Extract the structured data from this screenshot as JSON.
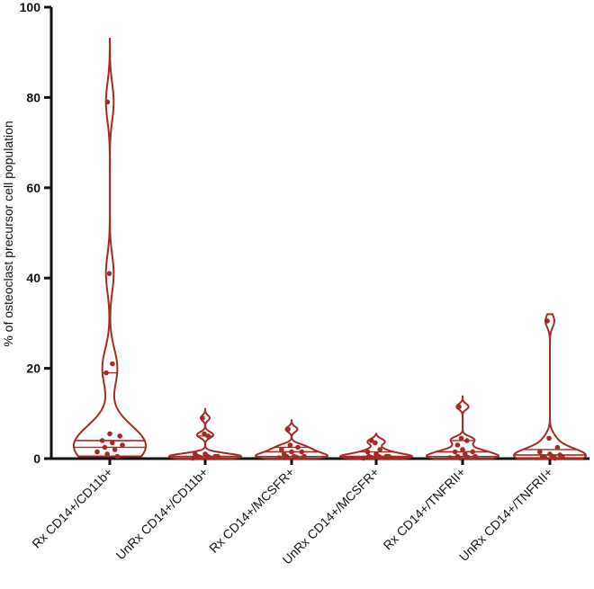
{
  "colors": {
    "accent": "#a52a22",
    "axis": "#111111"
  },
  "chart_data": {
    "type": "violin",
    "ylabel": "% of osteoclast precursor cell population",
    "xlabel": "",
    "ylim": [
      0,
      100
    ],
    "yticks": [
      0,
      20,
      40,
      60,
      80,
      100
    ],
    "categories": [
      "Rx CD14+/CD11b+",
      "UnRx CD14+/CD11b+",
      "Rx CD14+/MCSFR+",
      "UnRx CD14+/MCSFR+",
      "Rx CD14+/TNFRII+",
      "UnRx CD14+/TNFRII+"
    ],
    "series": [
      {
        "category": "Rx CD14+/CD11b+",
        "range": [
          0.5,
          93
        ],
        "median": 4,
        "quartiles": [
          2.5,
          19
        ],
        "points": [
          79,
          41,
          21,
          19,
          5.5,
          5,
          4,
          3.5,
          3,
          2.5,
          2,
          1.5,
          1,
          0.5
        ]
      },
      {
        "category": "UnRx CD14+/CD11b+",
        "range": [
          0,
          11
        ],
        "median": 0.5,
        "quartiles": [
          0.2,
          5
        ],
        "points": [
          9,
          5.5,
          5,
          1,
          1,
          0.5,
          0.5,
          0.5,
          0.5,
          0.3,
          0.2,
          0.1
        ]
      },
      {
        "category": "Rx CD14+/MCSFR+",
        "range": [
          0,
          8.5
        ],
        "median": 1.5,
        "quartiles": [
          0.5,
          2.5
        ],
        "points": [
          6.5,
          3,
          2.5,
          2,
          1.5,
          1.5,
          1,
          0.5,
          0.5,
          0.5,
          0.3,
          0.2
        ]
      },
      {
        "category": "UnRx CD14+/MCSFR+",
        "range": [
          0,
          5.5
        ],
        "median": 0.5,
        "quartiles": [
          0.3,
          1.5
        ],
        "points": [
          4,
          3.5,
          2,
          1.5,
          1,
          0.5,
          0.5,
          0.5,
          0.5,
          0.3,
          0.2,
          0.1
        ]
      },
      {
        "category": "Rx CD14+/TNFRII+",
        "range": [
          0,
          14
        ],
        "median": 1.5,
        "quartiles": [
          0.5,
          4
        ],
        "points": [
          11.5,
          4.5,
          4,
          3,
          2,
          1.5,
          1.5,
          1,
          0.5,
          0.5,
          0.3,
          0.2,
          0.1
        ]
      },
      {
        "category": "UnRx CD14+/TNFRII+",
        "range": [
          0,
          32
        ],
        "median": 0.8,
        "quartiles": [
          0.2,
          2
        ],
        "points": [
          30.5,
          4.5,
          2.5,
          1.5,
          1,
          0.8,
          0.5,
          0.5,
          0.3,
          0.2,
          0.1
        ]
      }
    ]
  }
}
